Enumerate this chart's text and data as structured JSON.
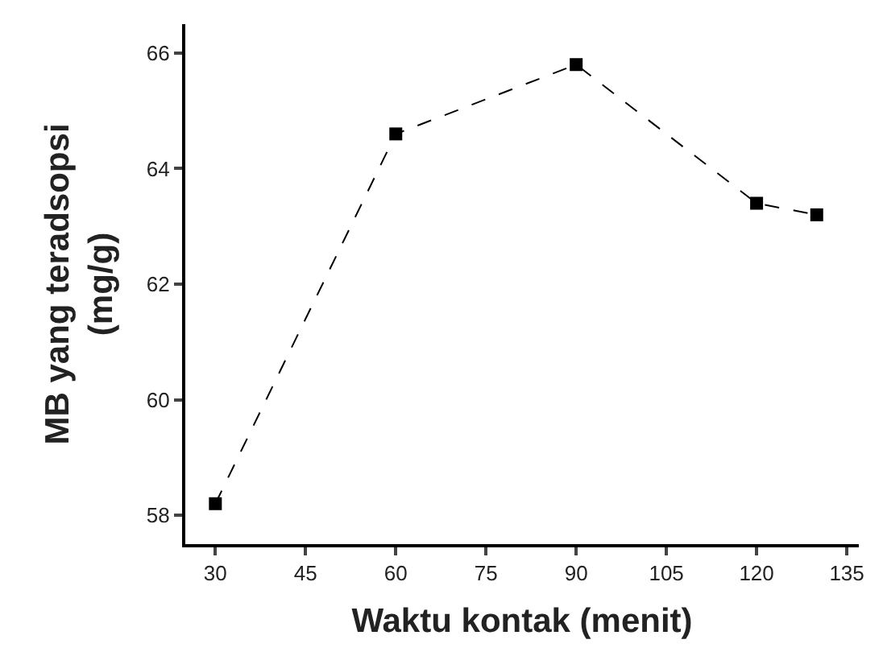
{
  "chart_data": {
    "type": "line",
    "xlabel": "Waktu kontak (menit)",
    "ylabel": "MB yang teradsopsi\n(mg/g)",
    "x": [
      30,
      60,
      90,
      120,
      130
    ],
    "series": [
      {
        "color": "#000000",
        "values": [
          58.2,
          64.6,
          65.8,
          63.4,
          63.2
        ]
      }
    ],
    "xlim": [
      25,
      137
    ],
    "xticks": [
      30,
      45,
      60,
      75,
      90,
      105,
      120,
      135
    ],
    "ylim": [
      57.5,
      66.5
    ],
    "yticks": [
      58,
      60,
      62,
      64,
      66
    ],
    "marker": "square",
    "line_style": "dashed",
    "legend": false
  }
}
